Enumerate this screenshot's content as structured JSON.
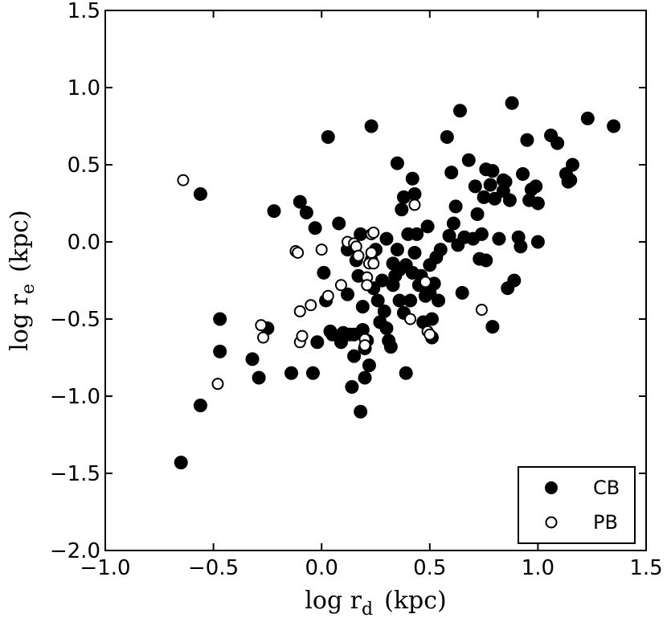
{
  "chart_data": {
    "type": "scatter",
    "xlabel": {
      "main": "log r",
      "sub": "d",
      "unit": "(kpc)"
    },
    "ylabel": {
      "main": "log r",
      "sub": "e",
      "unit": "(kpc)"
    },
    "xlim": [
      -1.0,
      1.5
    ],
    "ylim": [
      -2.0,
      1.5
    ],
    "x_ticks": [
      -1.0,
      -0.5,
      0.0,
      0.5,
      1.0,
      1.5
    ],
    "x_tick_labels": [
      "−1.0",
      "−0.5",
      "0.0",
      "0.5",
      "1.0",
      "1.5"
    ],
    "y_ticks": [
      -2.0,
      -1.5,
      -1.0,
      -0.5,
      0.0,
      0.5,
      1.0,
      1.5
    ],
    "y_tick_labels": [
      "−2.0",
      "−1.5",
      "−1.0",
      "−0.5",
      "0.0",
      "0.5",
      "1.0",
      "1.5"
    ],
    "grid": false,
    "legend_position": "bottom-right",
    "series": [
      {
        "name": "CB",
        "marker": "filled-circle",
        "color": "#000000",
        "points": [
          [
            -0.65,
            -1.43
          ],
          [
            -0.56,
            -1.06
          ],
          [
            -0.56,
            0.31
          ],
          [
            -0.47,
            -0.5
          ],
          [
            -0.47,
            -0.71
          ],
          [
            -0.32,
            -0.76
          ],
          [
            -0.29,
            -0.88
          ],
          [
            -0.25,
            -0.56
          ],
          [
            -0.22,
            0.2
          ],
          [
            -0.14,
            -0.85
          ],
          [
            -0.1,
            0.26
          ],
          [
            -0.07,
            0.19
          ],
          [
            -0.04,
            -0.85
          ],
          [
            -0.02,
            -0.65
          ],
          [
            -0.03,
            0.09
          ],
          [
            0.03,
            0.68
          ],
          [
            0.01,
            -0.2
          ],
          [
            0.02,
            -0.38
          ],
          [
            0.04,
            -0.58
          ],
          [
            0.05,
            -0.6
          ],
          [
            0.08,
            0.12
          ],
          [
            0.09,
            -0.65
          ],
          [
            0.1,
            -0.59
          ],
          [
            0.12,
            -0.05
          ],
          [
            0.12,
            -0.34
          ],
          [
            0.13,
            -0.6
          ],
          [
            0.14,
            -0.94
          ],
          [
            0.15,
            -0.74
          ],
          [
            0.15,
            -0.6
          ],
          [
            0.16,
            -0.12
          ],
          [
            0.17,
            -0.22
          ],
          [
            0.18,
            0.05
          ],
          [
            0.18,
            -1.1
          ],
          [
            0.19,
            -0.57
          ],
          [
            0.2,
            -0.88
          ],
          [
            0.19,
            -0.42
          ],
          [
            0.21,
            -0.64
          ],
          [
            0.2,
            -0.69
          ],
          [
            0.22,
            -0.8
          ],
          [
            0.23,
            0.75
          ],
          [
            0.23,
            -0.12
          ],
          [
            0.24,
            -0.3
          ],
          [
            0.25,
            -0.05
          ],
          [
            0.26,
            -0.38
          ],
          [
            0.27,
            -0.52
          ],
          [
            0.28,
            -0.25
          ],
          [
            0.29,
            -0.45
          ],
          [
            0.3,
            -0.56
          ],
          [
            0.3,
            0.02
          ],
          [
            0.31,
            -0.64
          ],
          [
            0.32,
            -0.68
          ],
          [
            0.33,
            -0.28
          ],
          [
            0.33,
            -0.14
          ],
          [
            0.34,
            -0.22
          ],
          [
            0.35,
            -0.05
          ],
          [
            0.35,
            0.51
          ],
          [
            0.36,
            -0.18
          ],
          [
            0.36,
            -0.38
          ],
          [
            0.37,
            0.21
          ],
          [
            0.38,
            -0.46
          ],
          [
            0.38,
            0.29
          ],
          [
            0.39,
            -0.85
          ],
          [
            0.39,
            -0.15
          ],
          [
            0.4,
            0.05
          ],
          [
            0.41,
            -0.38
          ],
          [
            0.42,
            -0.2
          ],
          [
            0.42,
            0.41
          ],
          [
            0.43,
            0.31
          ],
          [
            0.43,
            -0.07
          ],
          [
            0.44,
            0.05
          ],
          [
            0.45,
            -0.28
          ],
          [
            0.46,
            -0.22
          ],
          [
            0.47,
            -0.52
          ],
          [
            0.48,
            -0.35
          ],
          [
            0.49,
            0.1
          ],
          [
            0.5,
            -0.33
          ],
          [
            0.5,
            -0.15
          ],
          [
            0.51,
            -0.62
          ],
          [
            0.51,
            -0.5
          ],
          [
            0.52,
            -0.27
          ],
          [
            0.53,
            -0.1
          ],
          [
            0.54,
            -0.38
          ],
          [
            0.55,
            -0.05
          ],
          [
            0.58,
            0.68
          ],
          [
            0.59,
            0.04
          ],
          [
            0.6,
            0.45
          ],
          [
            0.61,
            0.12
          ],
          [
            0.62,
            0.23
          ],
          [
            0.63,
            -0.02
          ],
          [
            0.64,
            0.85
          ],
          [
            0.65,
            -0.33
          ],
          [
            0.66,
            0.03
          ],
          [
            0.68,
            0.53
          ],
          [
            0.7,
            0.02
          ],
          [
            0.71,
            0.36
          ],
          [
            0.72,
            0.18
          ],
          [
            0.73,
            -0.11
          ],
          [
            0.74,
            0.05
          ],
          [
            0.75,
            0.29
          ],
          [
            0.76,
            0.47
          ],
          [
            0.76,
            -0.12
          ],
          [
            0.78,
            0.37
          ],
          [
            0.79,
            0.46
          ],
          [
            0.79,
            -0.55
          ],
          [
            0.8,
            0.28
          ],
          [
            0.82,
            0.02
          ],
          [
            0.84,
            0.33
          ],
          [
            0.85,
            0.39
          ],
          [
            0.86,
            -0.3
          ],
          [
            0.87,
            0.27
          ],
          [
            0.88,
            0.9
          ],
          [
            0.89,
            -0.25
          ],
          [
            0.91,
            0.03
          ],
          [
            0.92,
            -0.03
          ],
          [
            0.93,
            0.44
          ],
          [
            0.95,
            0.66
          ],
          [
            0.96,
            0.27
          ],
          [
            0.97,
            0.34
          ],
          [
            0.99,
            0.36
          ],
          [
            1.0,
            0.0
          ],
          [
            1.0,
            0.25
          ],
          [
            1.06,
            0.69
          ],
          [
            1.09,
            0.64
          ],
          [
            1.13,
            0.44
          ],
          [
            1.14,
            0.39
          ],
          [
            1.15,
            0.4
          ],
          [
            1.16,
            0.5
          ],
          [
            1.23,
            0.8
          ],
          [
            1.35,
            0.75
          ],
          [
            0.84,
            0.4
          ]
        ]
      },
      {
        "name": "PB",
        "marker": "open-circle",
        "color": "#000000",
        "points": [
          [
            -0.64,
            0.4
          ],
          [
            -0.48,
            -0.92
          ],
          [
            -0.28,
            -0.54
          ],
          [
            -0.27,
            -0.62
          ],
          [
            -0.12,
            -0.06
          ],
          [
            -0.11,
            -0.07
          ],
          [
            -0.1,
            -0.65
          ],
          [
            -0.1,
            -0.45
          ],
          [
            -0.09,
            -0.61
          ],
          [
            -0.05,
            -0.41
          ],
          [
            0.0,
            -0.05
          ],
          [
            0.03,
            -0.35
          ],
          [
            0.09,
            -0.28
          ],
          [
            0.12,
            0.0
          ],
          [
            0.15,
            -0.01
          ],
          [
            0.16,
            -0.03
          ],
          [
            0.17,
            -0.09
          ],
          [
            0.2,
            -0.63
          ],
          [
            0.2,
            -0.67
          ],
          [
            0.21,
            -0.23
          ],
          [
            0.21,
            -0.28
          ],
          [
            0.22,
            -0.14
          ],
          [
            0.23,
            0.05
          ],
          [
            0.23,
            -0.07
          ],
          [
            0.24,
            0.06
          ],
          [
            0.24,
            -0.14
          ],
          [
            0.41,
            -0.5
          ],
          [
            0.43,
            0.24
          ],
          [
            0.48,
            -0.26
          ],
          [
            0.49,
            -0.58
          ],
          [
            0.5,
            -0.6
          ],
          [
            0.74,
            -0.44
          ]
        ]
      }
    ]
  }
}
